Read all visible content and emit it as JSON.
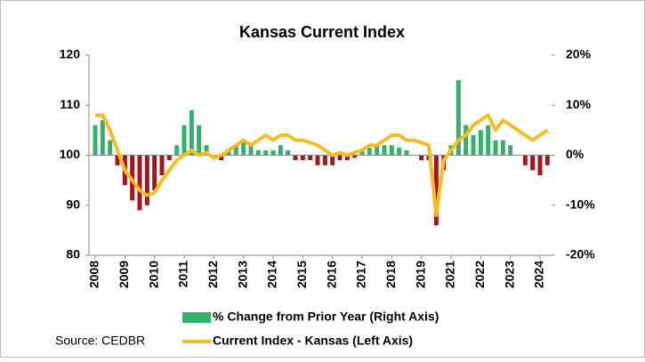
{
  "chart_data": {
    "type": "bar_line_dual",
    "title": "Kansas Current Index",
    "source": "Source: CEDBR",
    "categories": [
      "2008",
      null,
      null,
      null,
      "2009",
      null,
      null,
      null,
      "2010",
      null,
      null,
      null,
      "2011",
      null,
      null,
      null,
      "2012",
      null,
      null,
      null,
      "2013",
      null,
      null,
      null,
      "2014",
      null,
      null,
      null,
      "2015",
      null,
      null,
      null,
      "2016",
      null,
      null,
      null,
      "2017",
      null,
      null,
      null,
      "2018",
      null,
      null,
      null,
      "2019",
      null,
      null,
      null,
      "2021",
      null,
      null,
      null,
      "2022",
      null,
      null,
      null,
      "2023",
      null,
      null,
      null,
      "2024",
      null
    ],
    "series": [
      {
        "name": "% Change from Prior Year (Right Axis)",
        "axis": "y2",
        "kind": "bar",
        "color": "#2fb36a",
        "negative_color": "#a5151b",
        "values": [
          6,
          7,
          3,
          -2,
          -6,
          -9,
          -11,
          -10,
          -7,
          -4,
          -1,
          2,
          6,
          9,
          6,
          2,
          0,
          -1,
          1,
          2,
          3,
          2,
          1,
          1,
          1,
          2,
          1,
          -1,
          -1,
          -1,
          -2,
          -2,
          -2,
          -1,
          -1,
          -0.5,
          1,
          1.5,
          2,
          2,
          2,
          1.5,
          1,
          0,
          -1,
          -1,
          -14,
          -3,
          2,
          15,
          6,
          4,
          5,
          6,
          3,
          3,
          2,
          0,
          -2,
          -3,
          -4,
          -2
        ]
      },
      {
        "name": "Current Index - Kansas (Left Axis)",
        "axis": "y",
        "kind": "line",
        "color": "#f5bd1f",
        "values": [
          108,
          108,
          105,
          101,
          97,
          95,
          93,
          92,
          92.5,
          95,
          97,
          99,
          100,
          101,
          100,
          100.5,
          99.5,
          100,
          101,
          102,
          103,
          102,
          103,
          104,
          103,
          104,
          104,
          103,
          103,
          102.5,
          102,
          101,
          100,
          100.5,
          100,
          100.5,
          101,
          102,
          102,
          103,
          104,
          104,
          103,
          103,
          102.5,
          102,
          88,
          99,
          101,
          103,
          104,
          106,
          107,
          108,
          105,
          107,
          106,
          105,
          104,
          103,
          104,
          105
        ]
      }
    ],
    "ylim": [
      80,
      120
    ],
    "yticks": [
      80,
      90,
      100,
      110,
      120
    ],
    "y2lim": [
      -20,
      20
    ],
    "y2ticks": [
      {
        "value": -20,
        "label": "-20%"
      },
      {
        "value": -10,
        "label": "-10%"
      },
      {
        "value": 0,
        "label": "0%"
      },
      {
        "value": 10,
        "label": "10%"
      },
      {
        "value": 20,
        "label": "20%"
      }
    ],
    "grid": false
  }
}
